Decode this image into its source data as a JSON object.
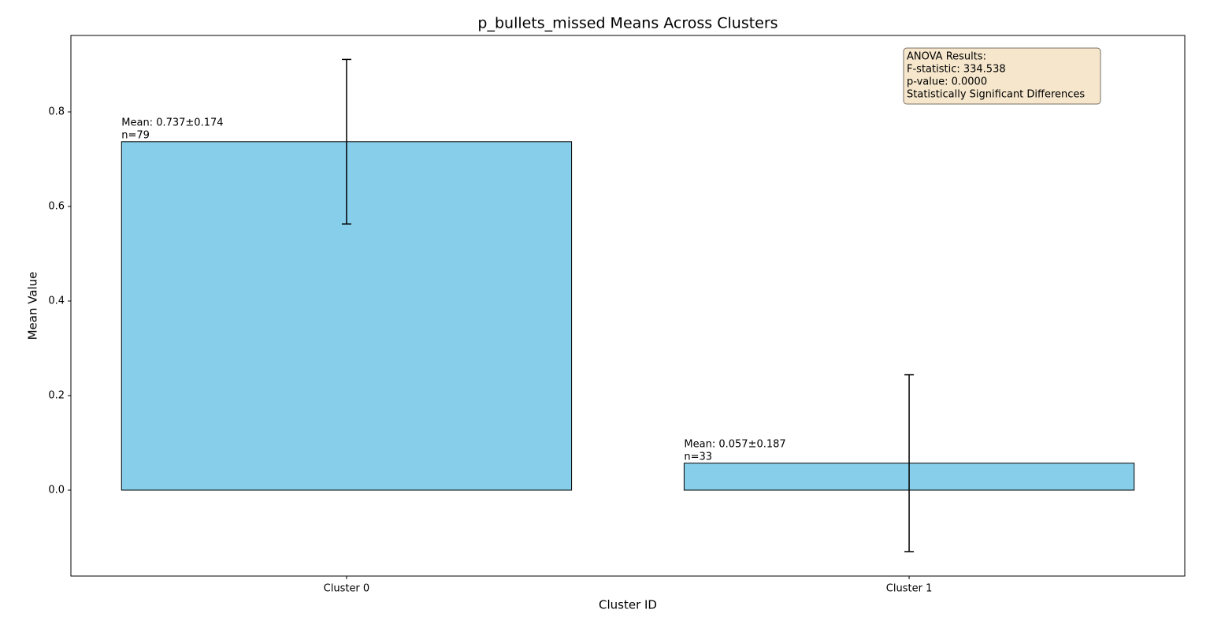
{
  "chart_data": {
    "type": "bar",
    "title": "p_bullets_missed Means Across Clusters",
    "x_label": "Cluster ID",
    "y_label": "Mean Value",
    "categories": [
      "Cluster 0",
      "Cluster 1"
    ],
    "series": [
      {
        "values": [
          0.737,
          0.057
        ],
        "errors": [
          0.174,
          0.187
        ],
        "color": "#87ceeb",
        "edgecolor": "#000000"
      }
    ],
    "bar_annotations": [
      [
        "Mean: 0.737±0.174",
        "n=79"
      ],
      [
        "Mean: 0.057±0.187",
        "n=33"
      ]
    ],
    "ylim": [
      -0.1817,
      0.9617
    ],
    "yticks": [
      {
        "value": 0,
        "label": "0.0"
      },
      0.2,
      0.4,
      0.6,
      0.8
    ],
    "grid": false,
    "text_box": [
      "ANOVA Results:",
      "F-statistic: 334.538",
      "p-value: 0.0000",
      "Statistically Significant Differences"
    ],
    "text_box_color": "#f5e6cc"
  }
}
